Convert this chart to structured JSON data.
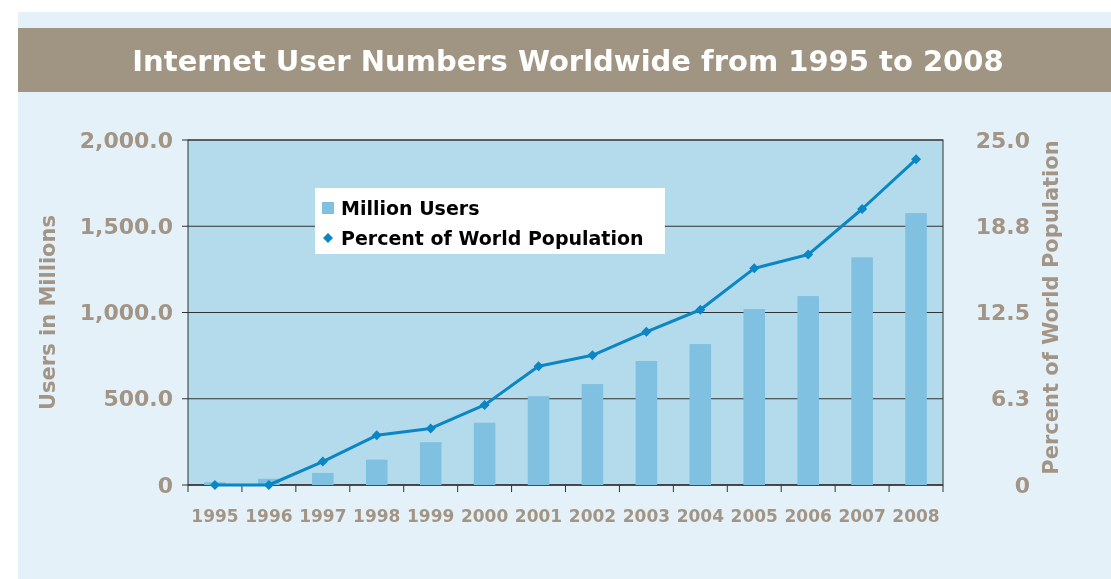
{
  "chart_data": {
    "type": "bar",
    "title": "Internet User Numbers Worldwide from 1995 to 2008",
    "categories": [
      "1995",
      "1996",
      "1997",
      "1998",
      "1999",
      "2000",
      "2001",
      "2002",
      "2003",
      "2004",
      "2005",
      "2006",
      "2007",
      "2008"
    ],
    "series": [
      {
        "name": "Million Users",
        "color": "#80c0e0",
        "values": [
          16,
          36,
          70,
          147,
          248,
          361,
          515,
          585,
          719,
          817,
          1020,
          1095,
          1320,
          1576
        ]
      },
      {
        "name": "Percent of World Population",
        "type": "line",
        "axis": "y2",
        "color": "#0a86c4",
        "values": [
          0,
          0,
          1.7,
          3.6,
          4.1,
          5.8,
          8.6,
          9.4,
          11.1,
          12.7,
          15.7,
          16.7,
          20.0,
          23.6
        ]
      }
    ],
    "ylabel": "Users in Millions",
    "y2label": "Percent of World Population",
    "ylim": [
      0,
      2000
    ],
    "yticks": [
      0,
      {
        "value": 500,
        "label": "500.0"
      },
      {
        "value": 1000,
        "label": "1,000.0"
      },
      {
        "value": 1500,
        "label": "1,500.0"
      },
      {
        "value": 2000,
        "label": "2,000.0"
      }
    ],
    "y2lim": [
      0,
      25
    ],
    "y2ticks": [
      0,
      {
        "value": 6.25,
        "label": "6.3"
      },
      {
        "value": 12.5,
        "label": "12.5"
      },
      {
        "value": 18.75,
        "label": "18.8"
      },
      {
        "value": 25,
        "label": "25.0"
      }
    ],
    "grid": "y",
    "legend": "top",
    "marker": "diamond"
  }
}
